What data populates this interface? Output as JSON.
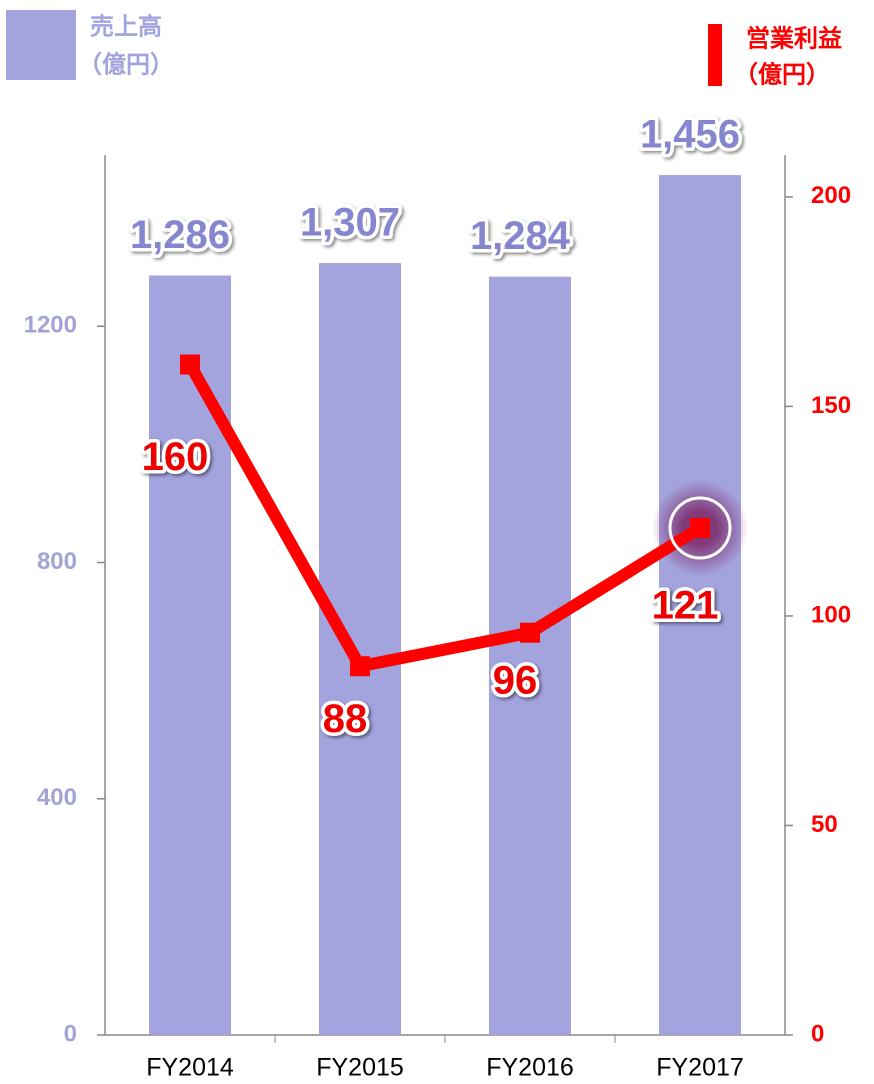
{
  "chart_data": {
    "type": "bar_line",
    "categories": [
      "FY2014",
      "FY2015",
      "FY2016",
      "FY2017"
    ],
    "series": [
      {
        "name": "売上高",
        "unit": "（億円）",
        "type": "bar",
        "color": "#a3a3de",
        "values": [
          1286,
          1307,
          1284,
          1456
        ],
        "value_labels": [
          "1,286",
          "1,307",
          "1,284",
          "1,456"
        ]
      },
      {
        "name": "営業利益",
        "unit": "（億円）",
        "type": "line",
        "axis": "y2",
        "color": "#ff0000",
        "values": [
          160,
          88,
          96,
          121
        ]
      }
    ],
    "ylim": [
      0,
      1490
    ],
    "yticks": [
      0,
      400,
      800,
      1200
    ],
    "y2lim": [
      0,
      210
    ],
    "y2ticks": [
      0,
      50,
      100,
      150,
      200
    ]
  }
}
